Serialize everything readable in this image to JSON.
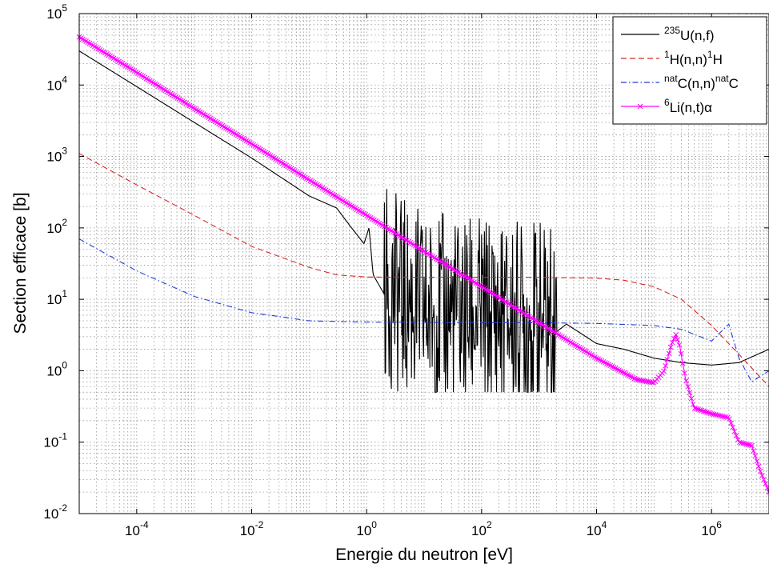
{
  "chart_data": {
    "type": "line",
    "xlabel": "Energie du neutron [eV]",
    "ylabel": "Section efficace [b]",
    "xscale": "log",
    "yscale": "log",
    "xlim": [
      1e-05,
      10000000.0
    ],
    "ylim": [
      0.01,
      100000
    ],
    "grid": true,
    "legend_position": "top-right",
    "x_ticks": [
      {
        "base": "10",
        "exp": "-4",
        "value": 0.0001
      },
      {
        "base": "10",
        "exp": "-2",
        "value": 0.01
      },
      {
        "base": "10",
        "exp": "0",
        "value": 1
      },
      {
        "base": "10",
        "exp": "2",
        "value": 100
      },
      {
        "base": "10",
        "exp": "4",
        "value": 10000
      },
      {
        "base": "10",
        "exp": "6",
        "value": 1000000
      }
    ],
    "y_ticks": [
      {
        "base": "10",
        "exp": "-2",
        "value": 0.01
      },
      {
        "base": "10",
        "exp": "-1",
        "value": 0.1
      },
      {
        "base": "10",
        "exp": "0",
        "value": 1
      },
      {
        "base": "10",
        "exp": "1",
        "value": 10
      },
      {
        "base": "10",
        "exp": "2",
        "value": 100
      },
      {
        "base": "10",
        "exp": "3",
        "value": 1000
      },
      {
        "base": "10",
        "exp": "4",
        "value": 10000
      },
      {
        "base": "10",
        "exp": "5",
        "value": 100000
      }
    ],
    "series": [
      {
        "name_parts": [
          {
            "t": "235",
            "sup": true
          },
          {
            "t": "U(n,f)",
            "sup": false
          }
        ],
        "color": "#000000",
        "style": "solid",
        "marker": "none",
        "x": [
          1e-05,
          0.0001,
          0.001,
          0.01,
          0.1,
          0.3,
          0.5,
          0.9,
          1.1,
          1.3,
          2,
          4,
          7,
          10,
          2000,
          3000,
          10000,
          30000,
          100000,
          300000,
          1000000,
          3000000,
          10000000
        ],
        "y": [
          30000,
          9500,
          3000,
          950,
          280,
          190,
          110,
          60,
          100,
          22,
          12,
          8,
          6,
          5,
          3.5,
          4.5,
          2.4,
          2.0,
          1.5,
          1.3,
          1.2,
          1.3,
          2.0
        ],
        "resonance_region": {
          "x_min": 2,
          "x_max": 2000,
          "y_min": 0.5,
          "y_max": 650
        }
      },
      {
        "name_parts": [
          {
            "t": "1",
            "sup": true
          },
          {
            "t": "H(n,n)",
            "sup": false
          },
          {
            "t": "1",
            "sup": true
          },
          {
            "t": "H",
            "sup": false
          }
        ],
        "color": "#d62728",
        "style": "dashed",
        "marker": "none",
        "x": [
          1e-05,
          0.0001,
          0.001,
          0.01,
          0.1,
          0.3,
          1,
          10,
          100,
          1000,
          10000,
          30000,
          100000,
          300000,
          1000000,
          3000000,
          10000000
        ],
        "y": [
          1100,
          400,
          150,
          55,
          28,
          22,
          20.5,
          20.4,
          20.4,
          20.3,
          19.8,
          18.5,
          15,
          10,
          4.3,
          1.7,
          0.6
        ]
      },
      {
        "name_parts": [
          {
            "t": "nat",
            "sup": true
          },
          {
            "t": "C(n,n)",
            "sup": false
          },
          {
            "t": "nat",
            "sup": true
          },
          {
            "t": "C",
            "sup": false
          }
        ],
        "color": "#1f3fd9",
        "style": "dashdot",
        "marker": "none",
        "x": [
          1e-05,
          0.0001,
          0.001,
          0.01,
          0.1,
          1,
          10,
          100,
          1000,
          10000,
          100000,
          300000,
          1000000,
          2000000,
          3000000,
          5000000,
          10000000
        ],
        "y": [
          70,
          25,
          11,
          6.5,
          5.0,
          4.8,
          4.75,
          4.72,
          4.7,
          4.6,
          4.3,
          3.8,
          2.6,
          4.5,
          1.5,
          0.7,
          1.0
        ]
      },
      {
        "name_parts": [
          {
            "t": "6",
            "sup": true
          },
          {
            "t": "Li(n,t)α",
            "sup": false
          }
        ],
        "color": "#ff00ff",
        "style": "solid",
        "marker": "x",
        "x": [
          1e-05,
          0.0001,
          0.001,
          0.01,
          0.1,
          1,
          10,
          100,
          1000,
          10000,
          50000,
          100000,
          150000,
          200000,
          240000,
          280000,
          350000,
          500000,
          1000000,
          2000000,
          3000000,
          5000000,
          7000000,
          10000000
        ],
        "y": [
          47000,
          15000,
          4700,
          1500,
          470,
          150,
          47,
          15,
          4.7,
          1.5,
          0.75,
          0.68,
          1.0,
          2.3,
          3.2,
          2.2,
          0.8,
          0.3,
          0.25,
          0.22,
          0.1,
          0.09,
          0.04,
          0.02
        ]
      }
    ]
  }
}
